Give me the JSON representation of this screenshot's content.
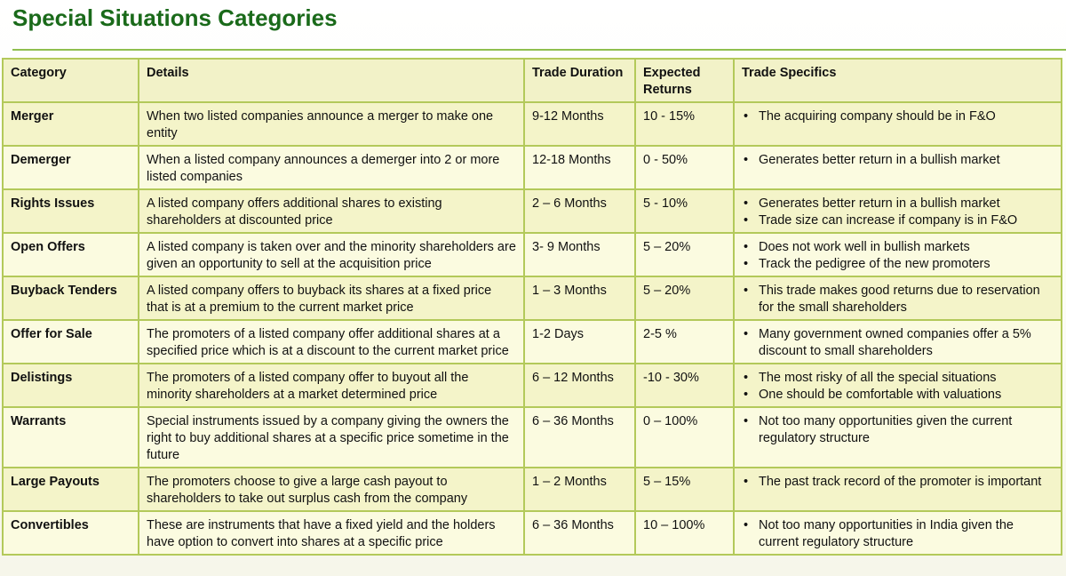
{
  "page": {
    "title": "Special Situations Categories"
  },
  "table": {
    "headers": [
      "Category",
      "Details",
      "Trade Duration",
      "Expected Returns",
      "Trade Specifics"
    ],
    "rows": [
      {
        "category": "Merger",
        "details": "When two listed companies announce a merger to make one entity",
        "duration": "9-12 Months",
        "returns": "10 - 15%",
        "specifics": [
          "The acquiring company should be in F&O"
        ]
      },
      {
        "category": "Demerger",
        "details": "When a listed company announces a demerger into 2 or more listed companies",
        "duration": "12-18 Months",
        "returns": "0 - 50%",
        "specifics": [
          "Generates better return in a bullish market"
        ]
      },
      {
        "category": "Rights Issues",
        "details": "A listed company offers additional shares to existing shareholders at discounted price",
        "duration": "2 – 6 Months",
        "returns": "5 - 10%",
        "specifics": [
          "Generates better return in a bullish market",
          "Trade size can increase if company is in F&O"
        ]
      },
      {
        "category": "Open Offers",
        "details": "A listed company is taken over and the minority shareholders are given an opportunity to sell at the acquisition price",
        "duration": "3- 9 Months",
        "returns": "5 – 20%",
        "specifics": [
          "Does not work well in bullish markets",
          "Track the pedigree of the new promoters"
        ]
      },
      {
        "category": "Buyback Tenders",
        "details": "A listed company offers to buyback its shares at a fixed price that is at a premium to the current market price",
        "duration": "1 – 3 Months",
        "returns": "5 – 20%",
        "specifics": [
          "This trade makes good returns due to reservation for the small shareholders"
        ]
      },
      {
        "category": "Offer for Sale",
        "details": "The promoters of a listed company offer additional shares at a specified price which is at a discount to the current market price",
        "duration": "1-2 Days",
        "returns": "2-5 %",
        "specifics": [
          "Many government owned companies offer a 5% discount to small shareholders"
        ]
      },
      {
        "category": "Delistings",
        "details": "The promoters of a listed company offer to buyout all the minority shareholders at a market determined price",
        "duration": "6 – 12 Months",
        "returns": "-10 - 30%",
        "specifics": [
          "The most risky of all the special situations",
          "One should be comfortable with valuations"
        ]
      },
      {
        "category": "Warrants",
        "details": "Special instruments issued by a company giving the owners the right to buy additional shares at a specific price sometime in the future",
        "duration": "6 – 36 Months",
        "returns": "0 – 100%",
        "specifics": [
          "Not too many opportunities given the current regulatory structure"
        ]
      },
      {
        "category": "Large Payouts",
        "details": "The promoters choose to give a large cash payout to shareholders to take out surplus cash from the company",
        "duration": "1 – 2 Months",
        "returns": "5 – 15%",
        "specifics": [
          "The past track record of the promoter is important"
        ]
      },
      {
        "category": "Convertibles",
        "details": "These are instruments that have a fixed yield and the holders have option to convert into shares at a specific price",
        "duration": "6 – 36 Months",
        "returns": "10 – 100%",
        "specifics": [
          "Not too many opportunities in India given the current regulatory structure"
        ]
      }
    ]
  },
  "colors": {
    "title": "#1a6a1a",
    "border": "#b3c95a",
    "cell_light": "#fbfbe0",
    "cell_dark": "#f4f4c9"
  }
}
